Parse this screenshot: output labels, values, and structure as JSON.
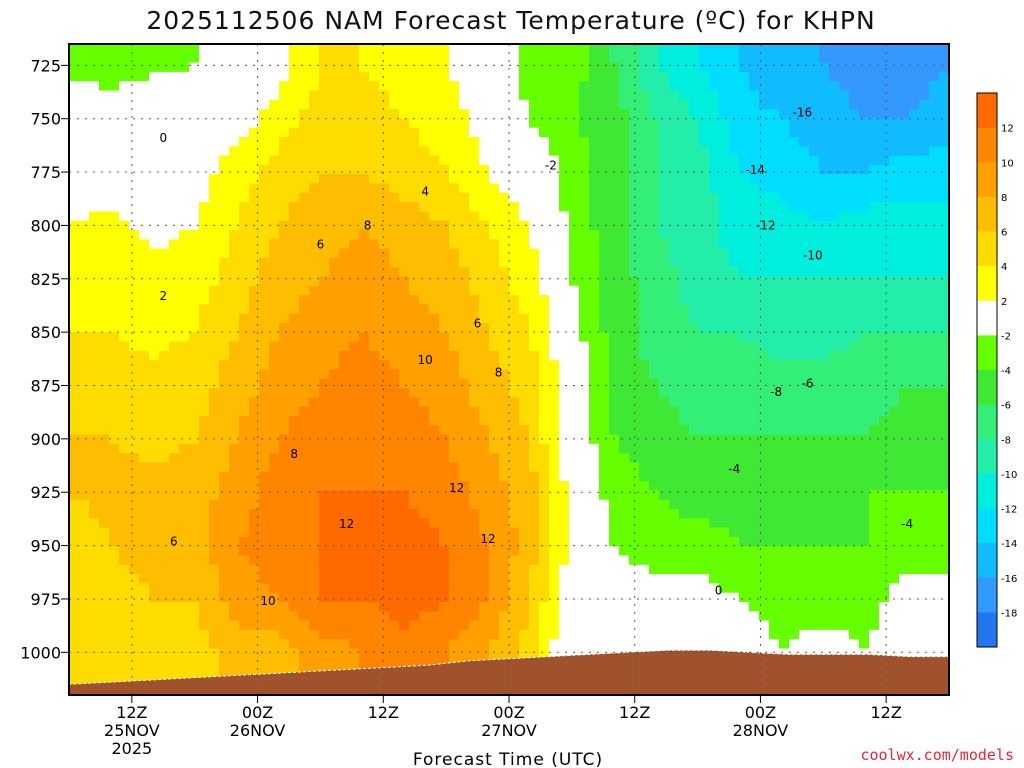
{
  "title": "2025112506 NAM Forecast Temperature (ºC) for KHPN",
  "credit": "coolwx.com/models",
  "chart_data": {
    "type": "heatmap",
    "subtype": "time-height filled contour",
    "title": "2025112506 NAM Forecast Temperature (ºC) for KHPN",
    "xlabel": "Forecast Time (UTC)",
    "ylabel": "",
    "x_unit": "forecast hour from 2025-11-25 06Z",
    "xlim": [
      0,
      84
    ],
    "y_unit": "hPa",
    "ylim": [
      1020,
      715
    ],
    "y_ticks": [
      725,
      750,
      775,
      800,
      825,
      850,
      875,
      900,
      925,
      950,
      975,
      1000
    ],
    "x_ticks": [
      {
        "hour": 6,
        "lines": [
          "12Z",
          "25NOV",
          "2025"
        ]
      },
      {
        "hour": 18,
        "lines": [
          "00Z",
          "26NOV"
        ]
      },
      {
        "hour": 30,
        "lines": [
          "12Z"
        ]
      },
      {
        "hour": 42,
        "lines": [
          "00Z",
          "27NOV"
        ]
      },
      {
        "hour": 54,
        "lines": [
          "12Z"
        ]
      },
      {
        "hour": 66,
        "lines": [
          "00Z",
          "28NOV"
        ]
      },
      {
        "hour": 78,
        "lines": [
          "12Z"
        ]
      }
    ],
    "grid": true,
    "colorbar": {
      "labels": [
        "12",
        "10",
        "8",
        "6",
        "4",
        "2",
        "-2",
        "-4",
        "-6",
        "-8",
        "-10",
        "-12",
        "-14",
        "-16",
        "-18"
      ],
      "colors": [
        "#ff6a00",
        "#ff8400",
        "#ffa000",
        "#ffbd00",
        "#ffdc00",
        "#ffff00",
        "#ffffff",
        "#66ff00",
        "#3fe832",
        "#33ee77",
        "#22eeaa",
        "#00eedd",
        "#00ddff",
        "#11bbff",
        "#3399ff",
        "#2277ee"
      ]
    },
    "surface_pressure_hpa": [
      1015,
      1014,
      1013,
      1012,
      1011,
      1010,
      1009,
      1008,
      1007,
      1006,
      1004,
      1003,
      1002,
      1001,
      1000,
      999,
      999,
      1000,
      1001,
      1001,
      1001,
      1002,
      1002
    ],
    "surface_color": "#a0522d",
    "temperature_profiles": {
      "hours": [
        0,
        4,
        8,
        12,
        16,
        20,
        24,
        28,
        32,
        36,
        40,
        44,
        46,
        48,
        52,
        56,
        60,
        64,
        68,
        72,
        76,
        80,
        84
      ],
      "pressure_levels_hpa": [
        725,
        750,
        775,
        800,
        825,
        850,
        875,
        900,
        925,
        950,
        975,
        1000
      ],
      "values": [
        [
          -3,
          0,
          1,
          2,
          3,
          4,
          5,
          6,
          6,
          5,
          5,
          5
        ],
        [
          -3,
          -0.5,
          1,
          2.5,
          3.5,
          4,
          5,
          6,
          6.5,
          6,
          5.5,
          5
        ],
        [
          -2.5,
          0,
          0.5,
          1.5,
          2.5,
          3.5,
          4.5,
          5.5,
          6.5,
          6.5,
          6,
          5.5
        ],
        [
          -2,
          0,
          1,
          2,
          3,
          4,
          5,
          6,
          7,
          7,
          6,
          5
        ],
        [
          -1,
          1,
          3,
          4,
          5,
          6,
          7,
          8,
          9,
          10,
          9,
          7
        ],
        [
          1,
          3,
          5,
          6,
          7,
          8,
          9,
          10,
          11,
          11,
          10,
          7
        ],
        [
          4,
          5,
          6,
          7,
          8,
          9,
          10,
          11,
          12,
          12,
          12,
          9
        ],
        [
          4,
          5,
          6,
          8,
          9,
          10,
          11,
          12,
          12,
          13,
          12,
          10
        ],
        [
          3,
          4,
          5,
          7,
          8,
          9,
          10,
          11,
          12,
          13,
          13,
          11
        ],
        [
          2,
          3,
          4,
          6,
          7,
          8,
          9,
          10,
          11,
          12,
          12,
          10
        ],
        [
          0,
          1,
          2,
          4,
          5,
          6,
          7,
          8,
          9,
          10,
          10,
          8
        ],
        [
          -3,
          -2,
          0,
          2,
          3,
          4,
          5,
          6,
          7,
          7,
          6,
          5
        ],
        [
          -3,
          -3,
          -1,
          0,
          1,
          2,
          3,
          3,
          4,
          4,
          3,
          2
        ],
        [
          -3,
          -4,
          -3,
          -3,
          -2,
          -1,
          0,
          0,
          1,
          1,
          1,
          1
        ],
        [
          -6,
          -5,
          -5,
          -5,
          -5,
          -5,
          -4,
          -4,
          -3,
          -2,
          -1,
          0
        ],
        [
          -10,
          -8,
          -8,
          -8,
          -7,
          -7,
          -6,
          -5,
          -4,
          -3,
          -1,
          0
        ],
        [
          -12,
          -10,
          -9,
          -9,
          -9,
          -8,
          -7,
          -6,
          -5,
          -3,
          -1,
          1
        ],
        [
          -14,
          -13,
          -12,
          -11,
          -10,
          -8,
          -7,
          -6,
          -5,
          -4,
          -2,
          0
        ],
        [
          -16,
          -14,
          -13,
          -11,
          -10,
          -9,
          -7,
          -6,
          -5,
          -4,
          -3,
          -2
        ],
        [
          -16,
          -15,
          -14,
          -12,
          -10,
          -9,
          -7,
          -6,
          -5,
          -4,
          -3,
          -1
        ],
        [
          -17,
          -16,
          -14,
          -11,
          -10,
          -8,
          -7,
          -6,
          -4,
          -4,
          -3,
          -2
        ],
        [
          -17,
          -16,
          -13,
          -11,
          -10,
          -8,
          -6,
          -5,
          -4,
          -3,
          -1,
          0
        ],
        [
          -16,
          -15,
          -13,
          -11,
          -10,
          -8,
          -6,
          -5,
          -4,
          -3,
          -1,
          1
        ]
      ]
    },
    "contour_labels": [
      {
        "text": "0",
        "hour": 9,
        "p": 759
      },
      {
        "text": "-2",
        "hour": 46,
        "p": 772
      },
      {
        "text": "4",
        "hour": 34,
        "p": 784
      },
      {
        "text": "8",
        "hour": 28.5,
        "p": 800
      },
      {
        "text": "6",
        "hour": 24,
        "p": 809
      },
      {
        "text": "2",
        "hour": 9,
        "p": 833
      },
      {
        "text": "6",
        "hour": 39,
        "p": 846
      },
      {
        "text": "10",
        "hour": 34,
        "p": 863
      },
      {
        "text": "8",
        "hour": 41,
        "p": 869
      },
      {
        "text": "8",
        "hour": 21.5,
        "p": 907
      },
      {
        "text": "12",
        "hour": 37,
        "p": 923
      },
      {
        "text": "6",
        "hour": 10,
        "p": 948
      },
      {
        "text": "12",
        "hour": 26.5,
        "p": 940
      },
      {
        "text": "12",
        "hour": 40,
        "p": 947
      },
      {
        "text": "10",
        "hour": 19,
        "p": 976
      },
      {
        "text": "-16",
        "hour": 70,
        "p": 747
      },
      {
        "text": "-14",
        "hour": 65.5,
        "p": 774
      },
      {
        "text": "-12",
        "hour": 66.5,
        "p": 800
      },
      {
        "text": "-10",
        "hour": 71,
        "p": 814
      },
      {
        "text": "-8",
        "hour": 67.5,
        "p": 878
      },
      {
        "text": "-6",
        "hour": 70.5,
        "p": 874
      },
      {
        "text": "-4",
        "hour": 63.5,
        "p": 914
      },
      {
        "text": "-4",
        "hour": 80,
        "p": 940
      },
      {
        "text": "0",
        "hour": 62,
        "p": 971
      }
    ]
  }
}
